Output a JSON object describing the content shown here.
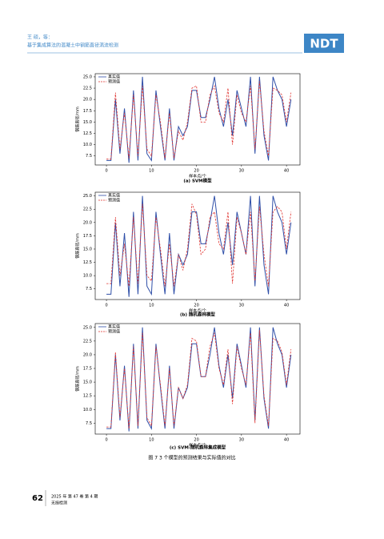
{
  "header": {
    "author": "王 硕，等：",
    "subtitle": "基于集成算法的混凝土中钢筋直径涡流检测",
    "logo": "NDT"
  },
  "chart_data": [
    {
      "type": "line",
      "caption": "(a) SVM模型",
      "xlabel": "样本点/个",
      "ylabel": "钢筋直径/mm",
      "x": [
        0,
        1,
        2,
        3,
        4,
        5,
        6,
        7,
        8,
        9,
        10,
        11,
        12,
        13,
        14,
        15,
        16,
        17,
        18,
        19,
        20,
        21,
        22,
        23,
        24,
        25,
        26,
        27,
        28,
        29,
        30,
        31,
        32,
        33,
        34,
        35,
        36,
        37,
        38,
        39,
        40,
        41
      ],
      "series": [
        {
          "name": "真实值",
          "color": "#2f4fa8",
          "values": [
            6.5,
            6.5,
            20,
            8,
            18,
            6,
            22,
            6.5,
            25,
            8,
            6.5,
            22,
            14,
            6.5,
            18,
            6.5,
            14,
            12,
            14,
            22,
            22,
            16,
            16,
            20,
            25,
            18,
            14,
            20,
            12,
            22,
            18,
            14,
            25,
            8,
            25,
            12,
            6.5,
            25,
            22,
            20,
            14,
            20
          ]
        },
        {
          "name": "预测值",
          "color": "#e0332f",
          "values": [
            6.8,
            6.8,
            21.5,
            9,
            17,
            7,
            21,
            7.5,
            23,
            9,
            7.5,
            21,
            15,
            7,
            17,
            7,
            13,
            11,
            15,
            22.5,
            23,
            15,
            15,
            21,
            23,
            17,
            15,
            22.5,
            10,
            21,
            17,
            15,
            23,
            9,
            24,
            13,
            7.5,
            22.5,
            22,
            21,
            15,
            21.5
          ]
        }
      ],
      "xlim": [
        -2.5,
        43
      ],
      "ylim": [
        5.5,
        25.7
      ],
      "xticks": [
        0,
        10,
        20,
        30,
        40
      ],
      "yticks": [
        {
          "value": 7.5,
          "label": "7.5"
        },
        {
          "value": 10,
          "label": "10.0"
        },
        {
          "value": 12.5,
          "label": "12.5"
        },
        {
          "value": 15,
          "label": "15.0"
        },
        {
          "value": 17.5,
          "label": "17.5"
        },
        {
          "value": 20,
          "label": "20.0"
        },
        {
          "value": 22.5,
          "label": "22.5"
        },
        {
          "value": 25,
          "label": "25.0"
        }
      ],
      "legend": "upper-left"
    },
    {
      "type": "line",
      "caption": "(b) 随机森林模型",
      "xlabel": "样本点/个",
      "ylabel": "钢筋直径/mm",
      "x": [
        0,
        1,
        2,
        3,
        4,
        5,
        6,
        7,
        8,
        9,
        10,
        11,
        12,
        13,
        14,
        15,
        16,
        17,
        18,
        19,
        20,
        21,
        22,
        23,
        24,
        25,
        26,
        27,
        28,
        29,
        30,
        31,
        32,
        33,
        34,
        35,
        36,
        37,
        38,
        39,
        40,
        41
      ],
      "series": [
        {
          "name": "真实值",
          "color": "#2f4fa8",
          "values": [
            6.5,
            6.5,
            20,
            8,
            18,
            6,
            22,
            6.5,
            25,
            8,
            6.5,
            22,
            14,
            6.5,
            18,
            6.5,
            14,
            12,
            14,
            22,
            22,
            16,
            16,
            20,
            25,
            18,
            14,
            20,
            12,
            22,
            18,
            14,
            25,
            8,
            25,
            12,
            6.5,
            25,
            22,
            20,
            14,
            20
          ]
        },
        {
          "name": "预测值",
          "color": "#e0332f",
          "values": [
            8.5,
            8.5,
            21,
            10,
            16,
            8,
            21,
            8.5,
            23.5,
            10,
            9,
            21,
            15,
            8,
            16,
            8,
            14,
            11,
            15,
            23.5,
            21.5,
            14,
            15,
            21,
            22,
            16,
            15,
            22,
            8.5,
            21,
            18,
            14,
            22,
            9,
            23,
            14,
            8,
            22,
            23,
            22,
            15,
            22
          ]
        }
      ],
      "xlim": [
        -2.5,
        43
      ],
      "ylim": [
        5.5,
        25.7
      ],
      "xticks": [
        0,
        10,
        20,
        30,
        40
      ],
      "yticks": [
        {
          "value": 7.5,
          "label": "7.5"
        },
        {
          "value": 10,
          "label": "10.0"
        },
        {
          "value": 12.5,
          "label": "12.5"
        },
        {
          "value": 15,
          "label": "15.0"
        },
        {
          "value": 17.5,
          "label": "17.5"
        },
        {
          "value": 20,
          "label": "20.0"
        },
        {
          "value": 22.5,
          "label": "22.5"
        },
        {
          "value": 25,
          "label": "25.0"
        }
      ],
      "legend": "upper-left"
    },
    {
      "type": "line",
      "caption": "(c) SVM-随机森林集成模型",
      "xlabel": "样本点/个",
      "ylabel": "钢筋直径/mm",
      "x": [
        0,
        1,
        2,
        3,
        4,
        5,
        6,
        7,
        8,
        9,
        10,
        11,
        12,
        13,
        14,
        15,
        16,
        17,
        18,
        19,
        20,
        21,
        22,
        23,
        24,
        25,
        26,
        27,
        28,
        29,
        30,
        31,
        32,
        33,
        34,
        35,
        36,
        37,
        38,
        39,
        40,
        41
      ],
      "series": [
        {
          "name": "真实值",
          "color": "#2f4fa8",
          "values": [
            6.5,
            6.5,
            20,
            8,
            18,
            6,
            22,
            6.5,
            25,
            8,
            6.5,
            22,
            14,
            6.5,
            18,
            6.5,
            14,
            12,
            14,
            22,
            22,
            16,
            16,
            20,
            25,
            18,
            14,
            20,
            12,
            22,
            18,
            14,
            25,
            8,
            25,
            12,
            6.5,
            25,
            22,
            20,
            14,
            20
          ]
        },
        {
          "name": "预测值",
          "color": "#e0332f",
          "values": [
            6.8,
            6.8,
            20.5,
            8.5,
            17.5,
            6.5,
            21.5,
            7,
            24,
            8.5,
            7,
            21.5,
            14.5,
            7,
            17.5,
            7,
            14,
            12,
            14.5,
            23,
            22.5,
            16,
            16,
            21.5,
            24,
            17.5,
            14.5,
            21,
            11,
            21.5,
            17.5,
            14.5,
            24,
            7.5,
            24.5,
            12.5,
            7,
            23,
            22.5,
            20.5,
            14.5,
            21
          ]
        }
      ],
      "xlim": [
        -2.5,
        43
      ],
      "ylim": [
        5.5,
        25.7
      ],
      "xticks": [
        0,
        10,
        20,
        30,
        40
      ],
      "yticks": [
        {
          "value": 7.5,
          "label": "7.5"
        },
        {
          "value": 10,
          "label": "10.0"
        },
        {
          "value": 12.5,
          "label": "12.5"
        },
        {
          "value": 15,
          "label": "15.0"
        },
        {
          "value": 17.5,
          "label": "17.5"
        },
        {
          "value": 20,
          "label": "20.0"
        },
        {
          "value": 22.5,
          "label": "22.5"
        },
        {
          "value": 25,
          "label": "25.0"
        }
      ],
      "legend": "upper-left"
    }
  ],
  "figure_caption": "图 7  3 个模型的预测结果与实际值的对比",
  "footer": {
    "page": "62",
    "issue": "2025 年 第 47 卷 第 4 期",
    "journal": "无损检测"
  }
}
